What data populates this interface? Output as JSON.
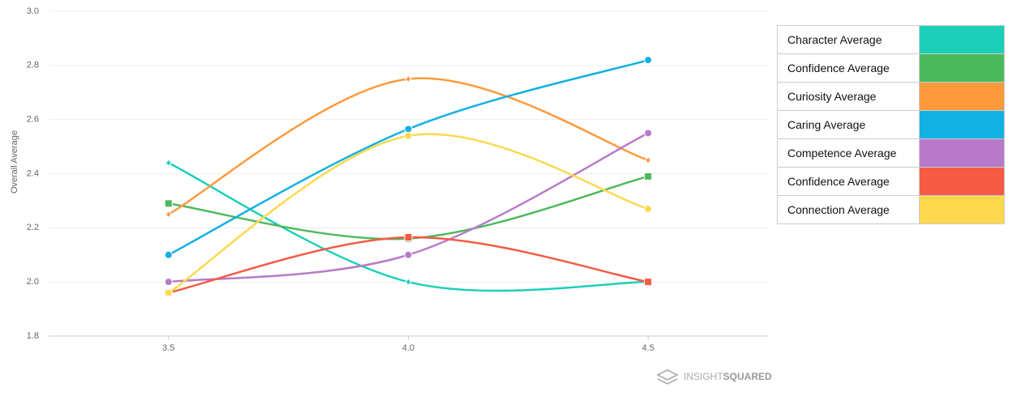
{
  "chart_data": {
    "type": "line",
    "y_label": "Overall Average",
    "x": [
      3.5,
      4,
      4.5
    ],
    "xlim": [
      3.25,
      4.75
    ],
    "xticks": [
      3.5,
      {
        "value": 4,
        "label": "4.0"
      },
      4.5
    ],
    "ylim": [
      1.8,
      3.0
    ],
    "yticks": [
      1.8,
      {
        "value": 2,
        "label": "2.0"
      },
      2.2,
      2.4,
      2.6,
      2.8,
      {
        "value": 3,
        "label": "3.0"
      }
    ],
    "grid": true,
    "legend": "right",
    "series": [
      {
        "name": "Character Average",
        "color": "#1ccfb8",
        "marker": "diamond",
        "values": [
          2.44,
          2.0,
          2.0
        ]
      },
      {
        "name": "Confidence Average",
        "color": "#4cba5c",
        "marker": "square",
        "values": [
          2.29,
          2.16,
          2.39
        ]
      },
      {
        "name": "Curiosity Average",
        "color": "#ff9a3c",
        "marker": "diamond",
        "values": [
          2.25,
          2.75,
          2.45
        ]
      },
      {
        "name": "Caring Average",
        "color": "#12b1e3",
        "marker": "circle",
        "values": [
          2.1,
          2.565,
          2.82
        ]
      },
      {
        "name": "Competence Average",
        "color": "#b87ac8",
        "marker": "circle",
        "values": [
          2.0,
          2.1,
          2.55
        ]
      },
      {
        "name": "Confidence Average",
        "color": "#f55a45",
        "marker": "square",
        "values": [
          1.96,
          2.165,
          2.0
        ]
      },
      {
        "name": "Connection Average",
        "color": "#fcd94e",
        "marker": "circle",
        "values": [
          1.96,
          2.54,
          2.27
        ]
      }
    ],
    "watermark": [
      "INSIGHT",
      "SQUARED"
    ]
  }
}
